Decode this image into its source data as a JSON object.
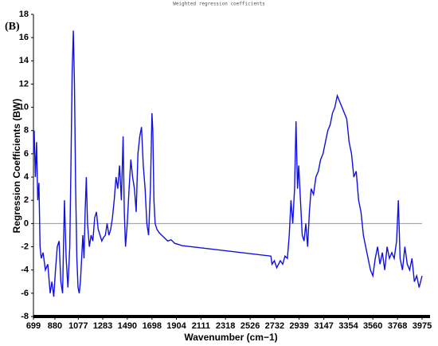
{
  "chart_data": {
    "type": "line",
    "title": "Weighted regression coefficients",
    "annotation": "(B)",
    "x_label": "Wavenumber (cm−1)",
    "y_label": "Regression Coefficients (BW)",
    "xlim": [
      699,
      3975
    ],
    "xticks": [
      699,
      880,
      1077,
      1283,
      1490,
      1698,
      1904,
      2111,
      2318,
      2526,
      2732,
      2939,
      3147,
      3354,
      3560,
      3768,
      3975
    ],
    "ylim": [
      -8,
      18
    ],
    "yticks": [
      -8,
      -6,
      -4,
      -2,
      0,
      2,
      4,
      6,
      8,
      10,
      12,
      14,
      16,
      18
    ],
    "zero_line": true,
    "series": [
      {
        "color": "#1010e0",
        "x": [
          699,
          705,
          715,
          725,
          735,
          745,
          755,
          765,
          780,
          800,
          820,
          840,
          855,
          870,
          885,
          900,
          915,
          930,
          945,
          960,
          975,
          990,
          1005,
          1015,
          1025,
          1035,
          1045,
          1055,
          1065,
          1075,
          1085,
          1095,
          1105,
          1115,
          1125,
          1135,
          1145,
          1155,
          1170,
          1185,
          1200,
          1215,
          1230,
          1245,
          1260,
          1275,
          1290,
          1305,
          1320,
          1335,
          1350,
          1365,
          1380,
          1395,
          1410,
          1425,
          1440,
          1455,
          1465,
          1475,
          1490,
          1505,
          1520,
          1535,
          1550,
          1565,
          1580,
          1595,
          1610,
          1625,
          1640,
          1655,
          1670,
          1685,
          1698,
          1705,
          1715,
          1725,
          1740,
          1760,
          1780,
          1800,
          1830,
          1860,
          1890,
          1920,
          1950,
          2700,
          2710,
          2730,
          2750,
          2780,
          2800,
          2820,
          2840,
          2855,
          2870,
          2885,
          2900,
          2912,
          2925,
          2935,
          2950,
          2965,
          2980,
          2995,
          3010,
          3025,
          3040,
          3060,
          3080,
          3100,
          3120,
          3140,
          3160,
          3180,
          3200,
          3220,
          3240,
          3260,
          3280,
          3300,
          3320,
          3340,
          3360,
          3380,
          3400,
          3420,
          3440,
          3460,
          3480,
          3500,
          3520,
          3540,
          3560,
          3580,
          3600,
          3620,
          3640,
          3660,
          3680,
          3700,
          3720,
          3740,
          3760,
          3775,
          3790,
          3810,
          3830,
          3850,
          3870,
          3890,
          3910,
          3930,
          3950,
          3975
        ],
        "values": [
          6,
          8,
          4,
          7,
          2,
          3.5,
          -2,
          -3,
          -2.5,
          -4,
          -3.5,
          -6,
          -5,
          -6.3,
          -4,
          -2,
          -1.5,
          -5,
          -6,
          2,
          -3,
          -5.5,
          -2,
          5,
          13,
          16.6,
          12,
          3,
          -3,
          -5.5,
          -6,
          -5,
          -3,
          -1,
          -3,
          1,
          4,
          0,
          -2,
          -1,
          -1.5,
          0.5,
          1,
          -0.5,
          -1,
          -1.5,
          -1.2,
          -1,
          0,
          -1,
          -0.5,
          0.5,
          2,
          4,
          3,
          5,
          2,
          7.5,
          1,
          -2,
          0,
          3,
          5.5,
          4,
          3,
          1,
          6,
          7.5,
          8.3,
          5,
          3,
          0,
          -1,
          3,
          9.5,
          8,
          2,
          0,
          -0.5,
          -0.8,
          -1,
          -1.2,
          -1.5,
          -1.4,
          -1.7,
          -1.8,
          -1.9,
          -2.8,
          -3.5,
          -3.2,
          -3.8,
          -3.2,
          -3.5,
          -2.8,
          -3,
          -1,
          2,
          0,
          3,
          8.8,
          3,
          5,
          2,
          -1,
          -1.5,
          0,
          -2,
          1,
          3,
          2.5,
          4,
          4.5,
          5.5,
          6,
          7,
          8,
          8.5,
          9.5,
          10,
          11,
          10.5,
          10,
          9.5,
          9,
          7,
          6,
          4,
          4.5,
          2,
          1,
          -1,
          -2,
          -3,
          -4,
          -4.5,
          -3,
          -2,
          -3.5,
          -2.5,
          -4,
          -2,
          -3,
          -2.5,
          -3,
          -1.5,
          2,
          -3,
          -4,
          -2,
          -3.5,
          -4,
          -3,
          -5,
          -4.5,
          -5.5,
          -4.5
        ]
      }
    ]
  }
}
